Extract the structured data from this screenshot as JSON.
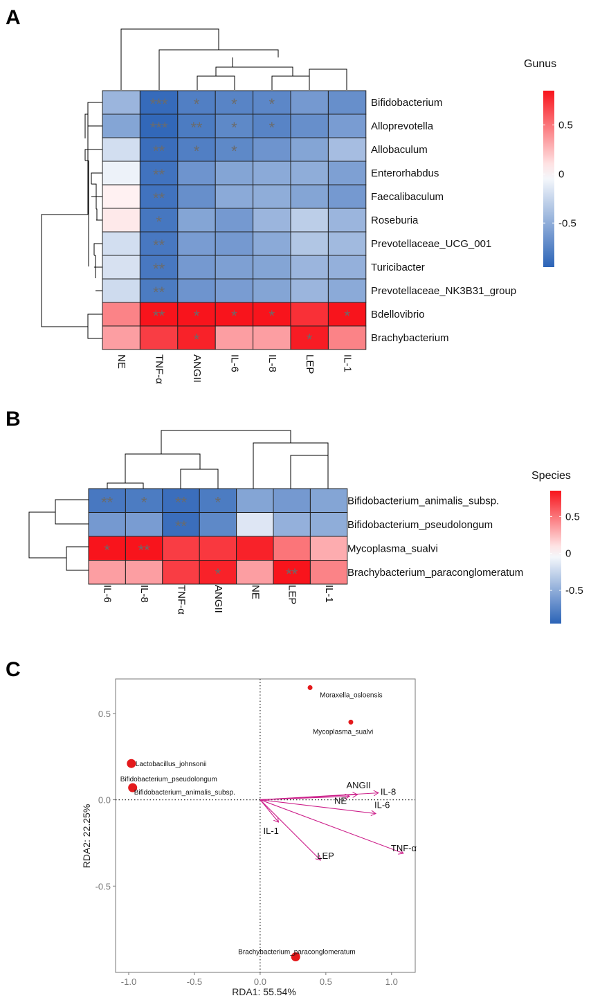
{
  "panels": {
    "a": "A",
    "b": "B",
    "c": "C"
  },
  "chart_data": [
    {
      "type": "heatmap",
      "legend_title": "Gunus",
      "legend_ticks": [
        0.5,
        0,
        -0.5
      ],
      "legend_range": [
        -0.95,
        0.85
      ],
      "rows": [
        "Bifidobacterium",
        "Alloprevotella",
        "Allobaculum",
        "Enterorhabdus",
        "Faecalibaculum",
        "Roseburia",
        "Prevotellaceae_UCG_001",
        "Turicibacter",
        "Prevotellaceae_NK3B31_group",
        "Bdellovibrio",
        "Brachybacterium"
      ],
      "columns": [
        "NE",
        "TNF-α",
        "ANGII",
        "IL-6",
        "IL-8",
        "LEP",
        "IL-1"
      ],
      "values": [
        [
          -0.45,
          -0.9,
          -0.78,
          -0.75,
          -0.73,
          -0.62,
          -0.68
        ],
        [
          -0.55,
          -0.92,
          -0.8,
          -0.72,
          -0.75,
          -0.68,
          -0.6
        ],
        [
          -0.2,
          -0.88,
          -0.78,
          -0.72,
          -0.65,
          -0.55,
          -0.4
        ],
        [
          -0.08,
          -0.85,
          -0.65,
          -0.55,
          -0.52,
          -0.5,
          -0.58
        ],
        [
          0.05,
          -0.85,
          -0.68,
          -0.52,
          -0.5,
          -0.55,
          -0.62
        ],
        [
          0.08,
          -0.83,
          -0.55,
          -0.62,
          -0.45,
          -0.3,
          -0.45
        ],
        [
          -0.2,
          -0.82,
          -0.6,
          -0.62,
          -0.52,
          -0.35,
          -0.42
        ],
        [
          -0.18,
          -0.82,
          -0.62,
          -0.58,
          -0.55,
          -0.45,
          -0.48
        ],
        [
          -0.22,
          -0.8,
          -0.65,
          -0.6,
          -0.55,
          -0.45,
          -0.52
        ],
        [
          0.45,
          0.92,
          0.85,
          0.9,
          0.88,
          0.75,
          0.88
        ],
        [
          0.35,
          0.7,
          0.8,
          0.35,
          0.35,
          0.82,
          0.45
        ]
      ],
      "stars": [
        [
          "",
          "***",
          "*",
          "*",
          "*",
          "",
          ""
        ],
        [
          "",
          "***",
          "**",
          "*",
          "*",
          "",
          ""
        ],
        [
          "",
          "**",
          "*",
          "*",
          "",
          "",
          ""
        ],
        [
          "",
          "**",
          "",
          "",
          "",
          "",
          ""
        ],
        [
          "",
          "**",
          "",
          "",
          "",
          "",
          ""
        ],
        [
          "",
          "*",
          "",
          "",
          "",
          "",
          ""
        ],
        [
          "",
          "**",
          "",
          "",
          "",
          "",
          ""
        ],
        [
          "",
          "**",
          "",
          "",
          "",
          "",
          ""
        ],
        [
          "",
          "**",
          "",
          "",
          "",
          "",
          ""
        ],
        [
          "",
          "**",
          "*",
          "*",
          "*",
          "",
          "*"
        ],
        [
          "",
          "",
          "*",
          "",
          "",
          "*",
          ""
        ]
      ]
    },
    {
      "type": "heatmap",
      "legend_title": "Species",
      "legend_ticks": [
        0.5,
        0,
        -0.5
      ],
      "legend_range": [
        -0.95,
        0.85
      ],
      "rows": [
        "Bifidobacterium_animalis_subsp.",
        "Bifidobacterium_pseudolongum",
        "Mycoplasma_sualvi",
        "Brachybacterium_paraconglomeratum"
      ],
      "columns": [
        "IL-6",
        "IL-8",
        "TNF-α",
        "ANGII",
        "NE",
        "LEP",
        "IL-1"
      ],
      "values": [
        [
          -0.82,
          -0.8,
          -0.88,
          -0.8,
          -0.55,
          -0.62,
          -0.55
        ],
        [
          -0.62,
          -0.6,
          -0.88,
          -0.72,
          -0.15,
          -0.48,
          -0.5
        ],
        [
          0.92,
          0.9,
          0.7,
          0.72,
          0.8,
          0.5,
          0.3
        ],
        [
          0.35,
          0.35,
          0.7,
          0.8,
          0.35,
          0.92,
          0.45
        ]
      ],
      "stars": [
        [
          "**",
          "*",
          "**",
          "*",
          "",
          "",
          ""
        ],
        [
          "",
          "",
          "**",
          "",
          "",
          "",
          ""
        ],
        [
          "*",
          "**",
          "",
          "",
          "",
          "",
          ""
        ],
        [
          "",
          "",
          "",
          "*",
          "",
          "**",
          ""
        ]
      ]
    },
    {
      "type": "scatter",
      "xlabel": "RDA1: 55.54%",
      "ylabel": "RDA2: 22.25%",
      "xlim": [
        -1.1,
        1.18
      ],
      "ylim": [
        -1.0,
        0.7
      ],
      "xticks": [
        -1.0,
        -0.5,
        0.0,
        0.5,
        1.0
      ],
      "xtick_labels": [
        "-1.0",
        "-0.5",
        "0.0",
        "0.5",
        "1.0"
      ],
      "yticks": [
        -0.5,
        0.0,
        0.5
      ],
      "ytick_labels": [
        "-0.5",
        "0.0",
        "0.5"
      ],
      "species": [
        {
          "label": "Moraxella_osloensis",
          "x": 0.38,
          "y": 0.65,
          "size": "small"
        },
        {
          "label": "Mycoplasma_sualvi",
          "x": 0.69,
          "y": 0.45,
          "size": "small"
        },
        {
          "label": "Lactobacillus_johnsonii",
          "x": -0.98,
          "y": 0.21,
          "size": "large"
        },
        {
          "label": "Bifidobacterium_pseudolongum",
          "x": -0.97,
          "y": 0.07,
          "size": "large"
        },
        {
          "label": "Bifidobacterium_animalis_subsp.",
          "x": -0.97,
          "y": 0.07,
          "size": "none"
        },
        {
          "label": "Brachybacterium_paraconglomeratum",
          "x": 0.27,
          "y": -0.91,
          "size": "large"
        }
      ],
      "environment_vectors": [
        {
          "label": "ANGII",
          "x": 0.74,
          "y": 0.03
        },
        {
          "label": "IL-8",
          "x": 0.9,
          "y": 0.04
        },
        {
          "label": "NE",
          "x": 0.68,
          "y": 0.02
        },
        {
          "label": "IL-6",
          "x": 0.88,
          "y": -0.08
        },
        {
          "label": "IL-1",
          "x": 0.14,
          "y": -0.13
        },
        {
          "label": "LEP",
          "x": 0.46,
          "y": -0.35
        },
        {
          "label": "TNF-α",
          "x": 1.09,
          "y": -0.31
        }
      ]
    }
  ],
  "colors": {
    "low": "#2b63b7",
    "mid": "#ffffff",
    "high": "#f8141c",
    "star": "#6b6b6b",
    "point": "#e41a1c",
    "vector": "#cc1f8a"
  }
}
